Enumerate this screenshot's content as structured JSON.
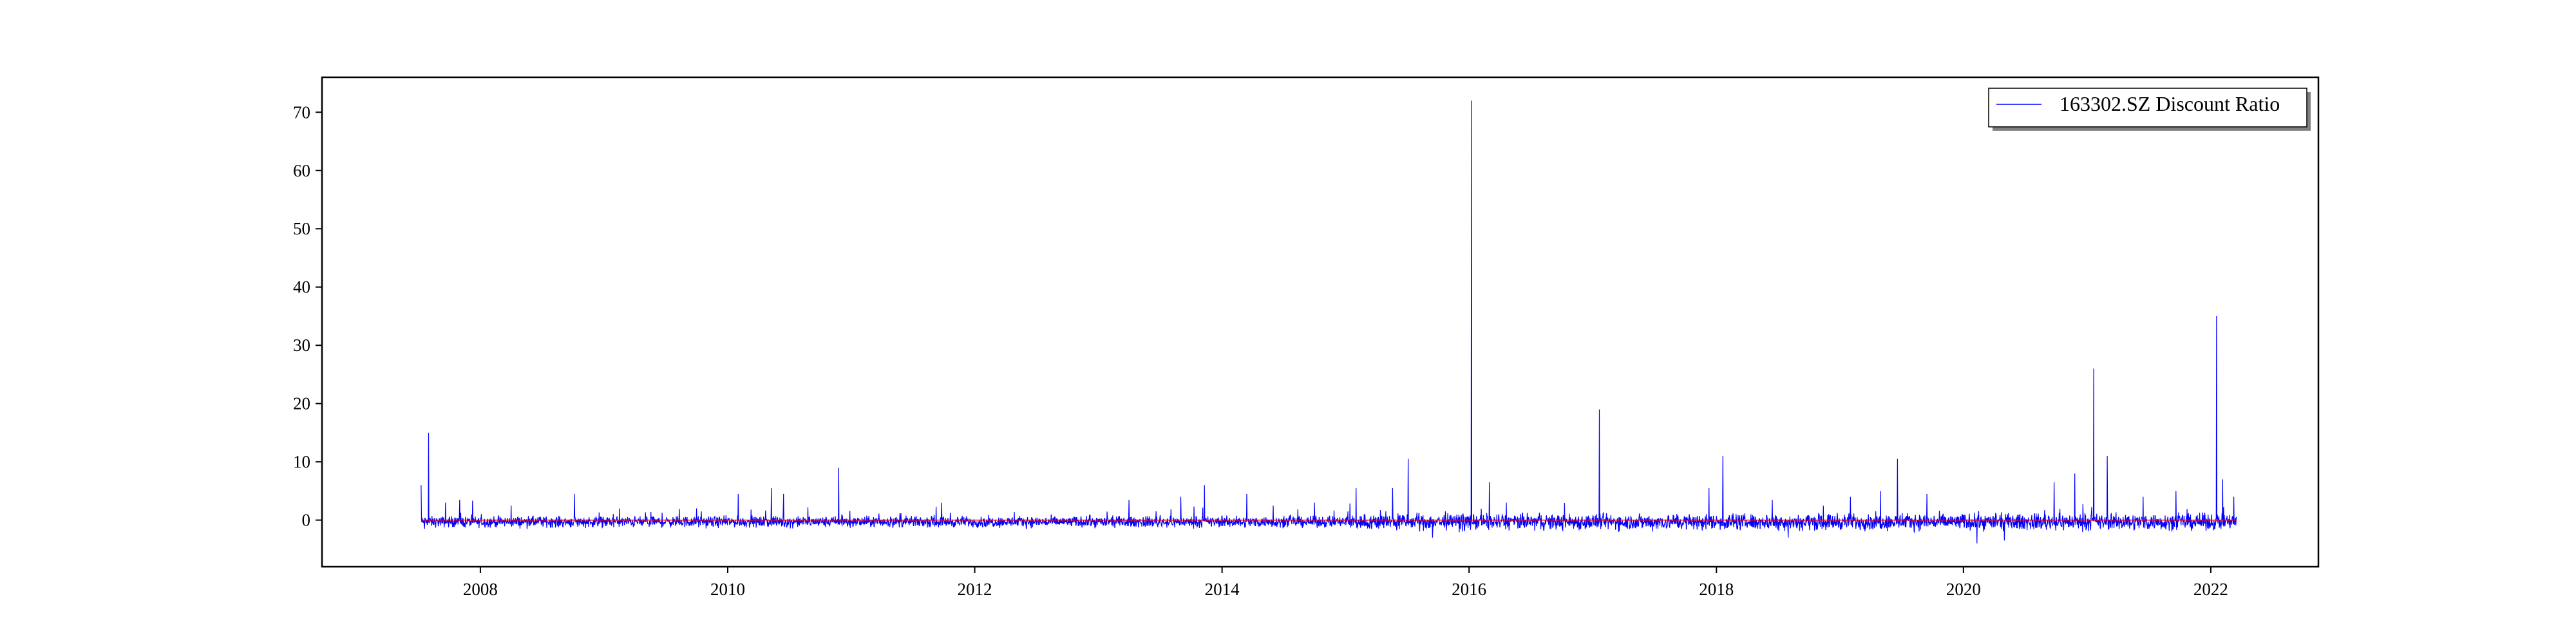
{
  "chart_data": {
    "type": "line",
    "title": "",
    "xlabel": "",
    "ylabel": "",
    "xlim": [
      "2006-09-20",
      "2022-11-15"
    ],
    "ylim": [
      -8,
      76
    ],
    "x_ticks": [
      "2008",
      "2010",
      "2012",
      "2014",
      "2016",
      "2018",
      "2020",
      "2022"
    ],
    "y_ticks": [
      0,
      10,
      20,
      30,
      40,
      50,
      60,
      70
    ],
    "grid": false,
    "legend": {
      "position": "top-right",
      "entries": [
        "163302.SZ Discount Ratio"
      ]
    },
    "series": [
      {
        "name": "163302.SZ Discount Ratio",
        "color": "#0000ff",
        "x_start": "2007-07-10",
        "x_end": "2022-03-18",
        "baseline": -0.3,
        "noise_amplitude": 0.9,
        "spikes": [
          {
            "x": "2007-07-10",
            "y": 6.0
          },
          {
            "x": "2007-07-20",
            "y": -1.5
          },
          {
            "x": "2007-08-01",
            "y": 15.0
          },
          {
            "x": "2007-09-20",
            "y": 3.0
          },
          {
            "x": "2007-11-01",
            "y": 3.5
          },
          {
            "x": "2008-04-01",
            "y": 2.5
          },
          {
            "x": "2008-10-05",
            "y": 4.5
          },
          {
            "x": "2009-02-15",
            "y": 2.0
          },
          {
            "x": "2009-10-01",
            "y": 2.0
          },
          {
            "x": "2010-02-01",
            "y": 4.5
          },
          {
            "x": "2010-05-10",
            "y": 5.5
          },
          {
            "x": "2010-06-15",
            "y": 4.5
          },
          {
            "x": "2010-11-25",
            "y": 9.0
          },
          {
            "x": "2011-09-25",
            "y": 3.0
          },
          {
            "x": "2013-04-01",
            "y": 3.5
          },
          {
            "x": "2013-09-01",
            "y": 4.0
          },
          {
            "x": "2013-11-10",
            "y": 6.0
          },
          {
            "x": "2014-03-15",
            "y": 4.5
          },
          {
            "x": "2014-06-01",
            "y": 2.5
          },
          {
            "x": "2014-10-01",
            "y": 3.0
          },
          {
            "x": "2015-02-01",
            "y": 5.5
          },
          {
            "x": "2015-05-20",
            "y": 5.5
          },
          {
            "x": "2015-07-05",
            "y": 10.5
          },
          {
            "x": "2015-09-15",
            "y": -3.0
          },
          {
            "x": "2016-01-08",
            "y": 72.0
          },
          {
            "x": "2016-03-01",
            "y": 6.5
          },
          {
            "x": "2016-04-20",
            "y": 3.0
          },
          {
            "x": "2017-01-20",
            "y": 19.0
          },
          {
            "x": "2017-12-10",
            "y": 5.5
          },
          {
            "x": "2018-01-20",
            "y": 11.0
          },
          {
            "x": "2018-06-15",
            "y": 3.5
          },
          {
            "x": "2018-08-01",
            "y": -3.0
          },
          {
            "x": "2019-02-01",
            "y": 4.0
          },
          {
            "x": "2019-05-01",
            "y": 5.0
          },
          {
            "x": "2019-06-20",
            "y": 10.5
          },
          {
            "x": "2019-09-15",
            "y": 4.5
          },
          {
            "x": "2020-02-10",
            "y": -4.0
          },
          {
            "x": "2020-05-01",
            "y": -3.5
          },
          {
            "x": "2020-09-25",
            "y": 6.5
          },
          {
            "x": "2020-11-25",
            "y": 8.0
          },
          {
            "x": "2021-01-20",
            "y": 26.0
          },
          {
            "x": "2021-03-01",
            "y": 11.0
          },
          {
            "x": "2021-06-15",
            "y": 4.0
          },
          {
            "x": "2021-09-20",
            "y": 5.0
          },
          {
            "x": "2022-01-18",
            "y": 35.0
          },
          {
            "x": "2022-02-05",
            "y": 7.0
          },
          {
            "x": "2022-03-10",
            "y": 4.0
          }
        ]
      },
      {
        "color": "#ff0000",
        "x": [
          "2007-07-10",
          "2022-03-18"
        ],
        "values": [
          0,
          0
        ]
      }
    ]
  }
}
